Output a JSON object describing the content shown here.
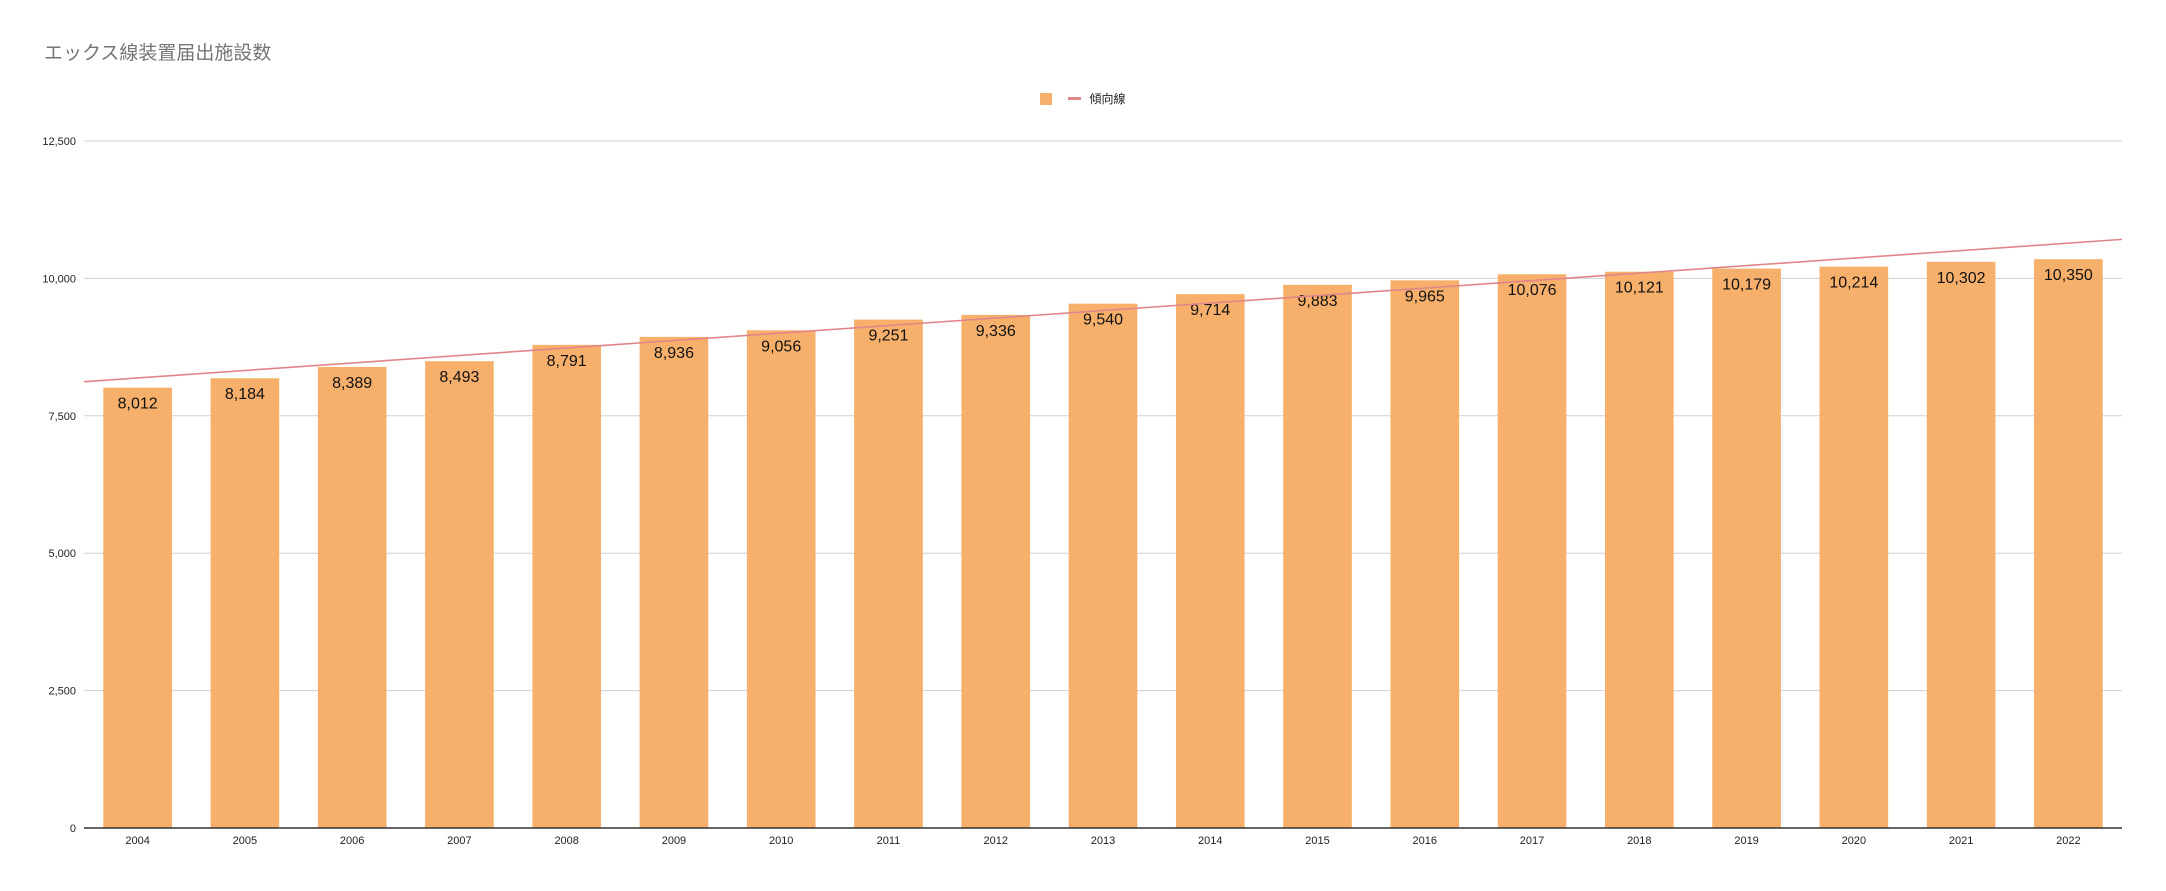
{
  "chart_data": {
    "type": "bar",
    "title": "エックス線装置届出施設数",
    "xlabel": "",
    "ylabel": "",
    "categories": [
      "2004",
      "2005",
      "2006",
      "2007",
      "2008",
      "2009",
      "2010",
      "2011",
      "2012",
      "2013",
      "2014",
      "2015",
      "2016",
      "2017",
      "2018",
      "2019",
      "2020",
      "2021",
      "2022"
    ],
    "values": [
      8012,
      8184,
      8389,
      8493,
      8791,
      8936,
      9056,
      9251,
      9336,
      9540,
      9714,
      9883,
      9965,
      10076,
      10121,
      10179,
      10214,
      10302,
      10350
    ],
    "value_labels": [
      "8,012",
      "8,184",
      "8,389",
      "8,493",
      "8,791",
      "8,936",
      "9,056",
      "9,251",
      "9,336",
      "9,540",
      "9,714",
      "9,883",
      "9,965",
      "10,076",
      "10,121",
      "10,179",
      "10,214",
      "10,302",
      "10,350"
    ],
    "ylim": [
      0,
      12500
    ],
    "yticks": [
      0,
      2500,
      5000,
      7500,
      10000,
      12500
    ],
    "ytick_labels": [
      "0",
      "2,500",
      "5,000",
      "7,500",
      "10,000",
      "12,500"
    ],
    "grid": true,
    "legend_position": "top-center",
    "trendline": {
      "label": "傾向線",
      "type": "linear",
      "start_value": 8120,
      "end_value": 10710
    },
    "colors": {
      "bar": "#f6b06b",
      "trendline": "#e0858a",
      "gridline": "#d0d0d0",
      "axis": "#333333",
      "title": "#757575"
    }
  }
}
